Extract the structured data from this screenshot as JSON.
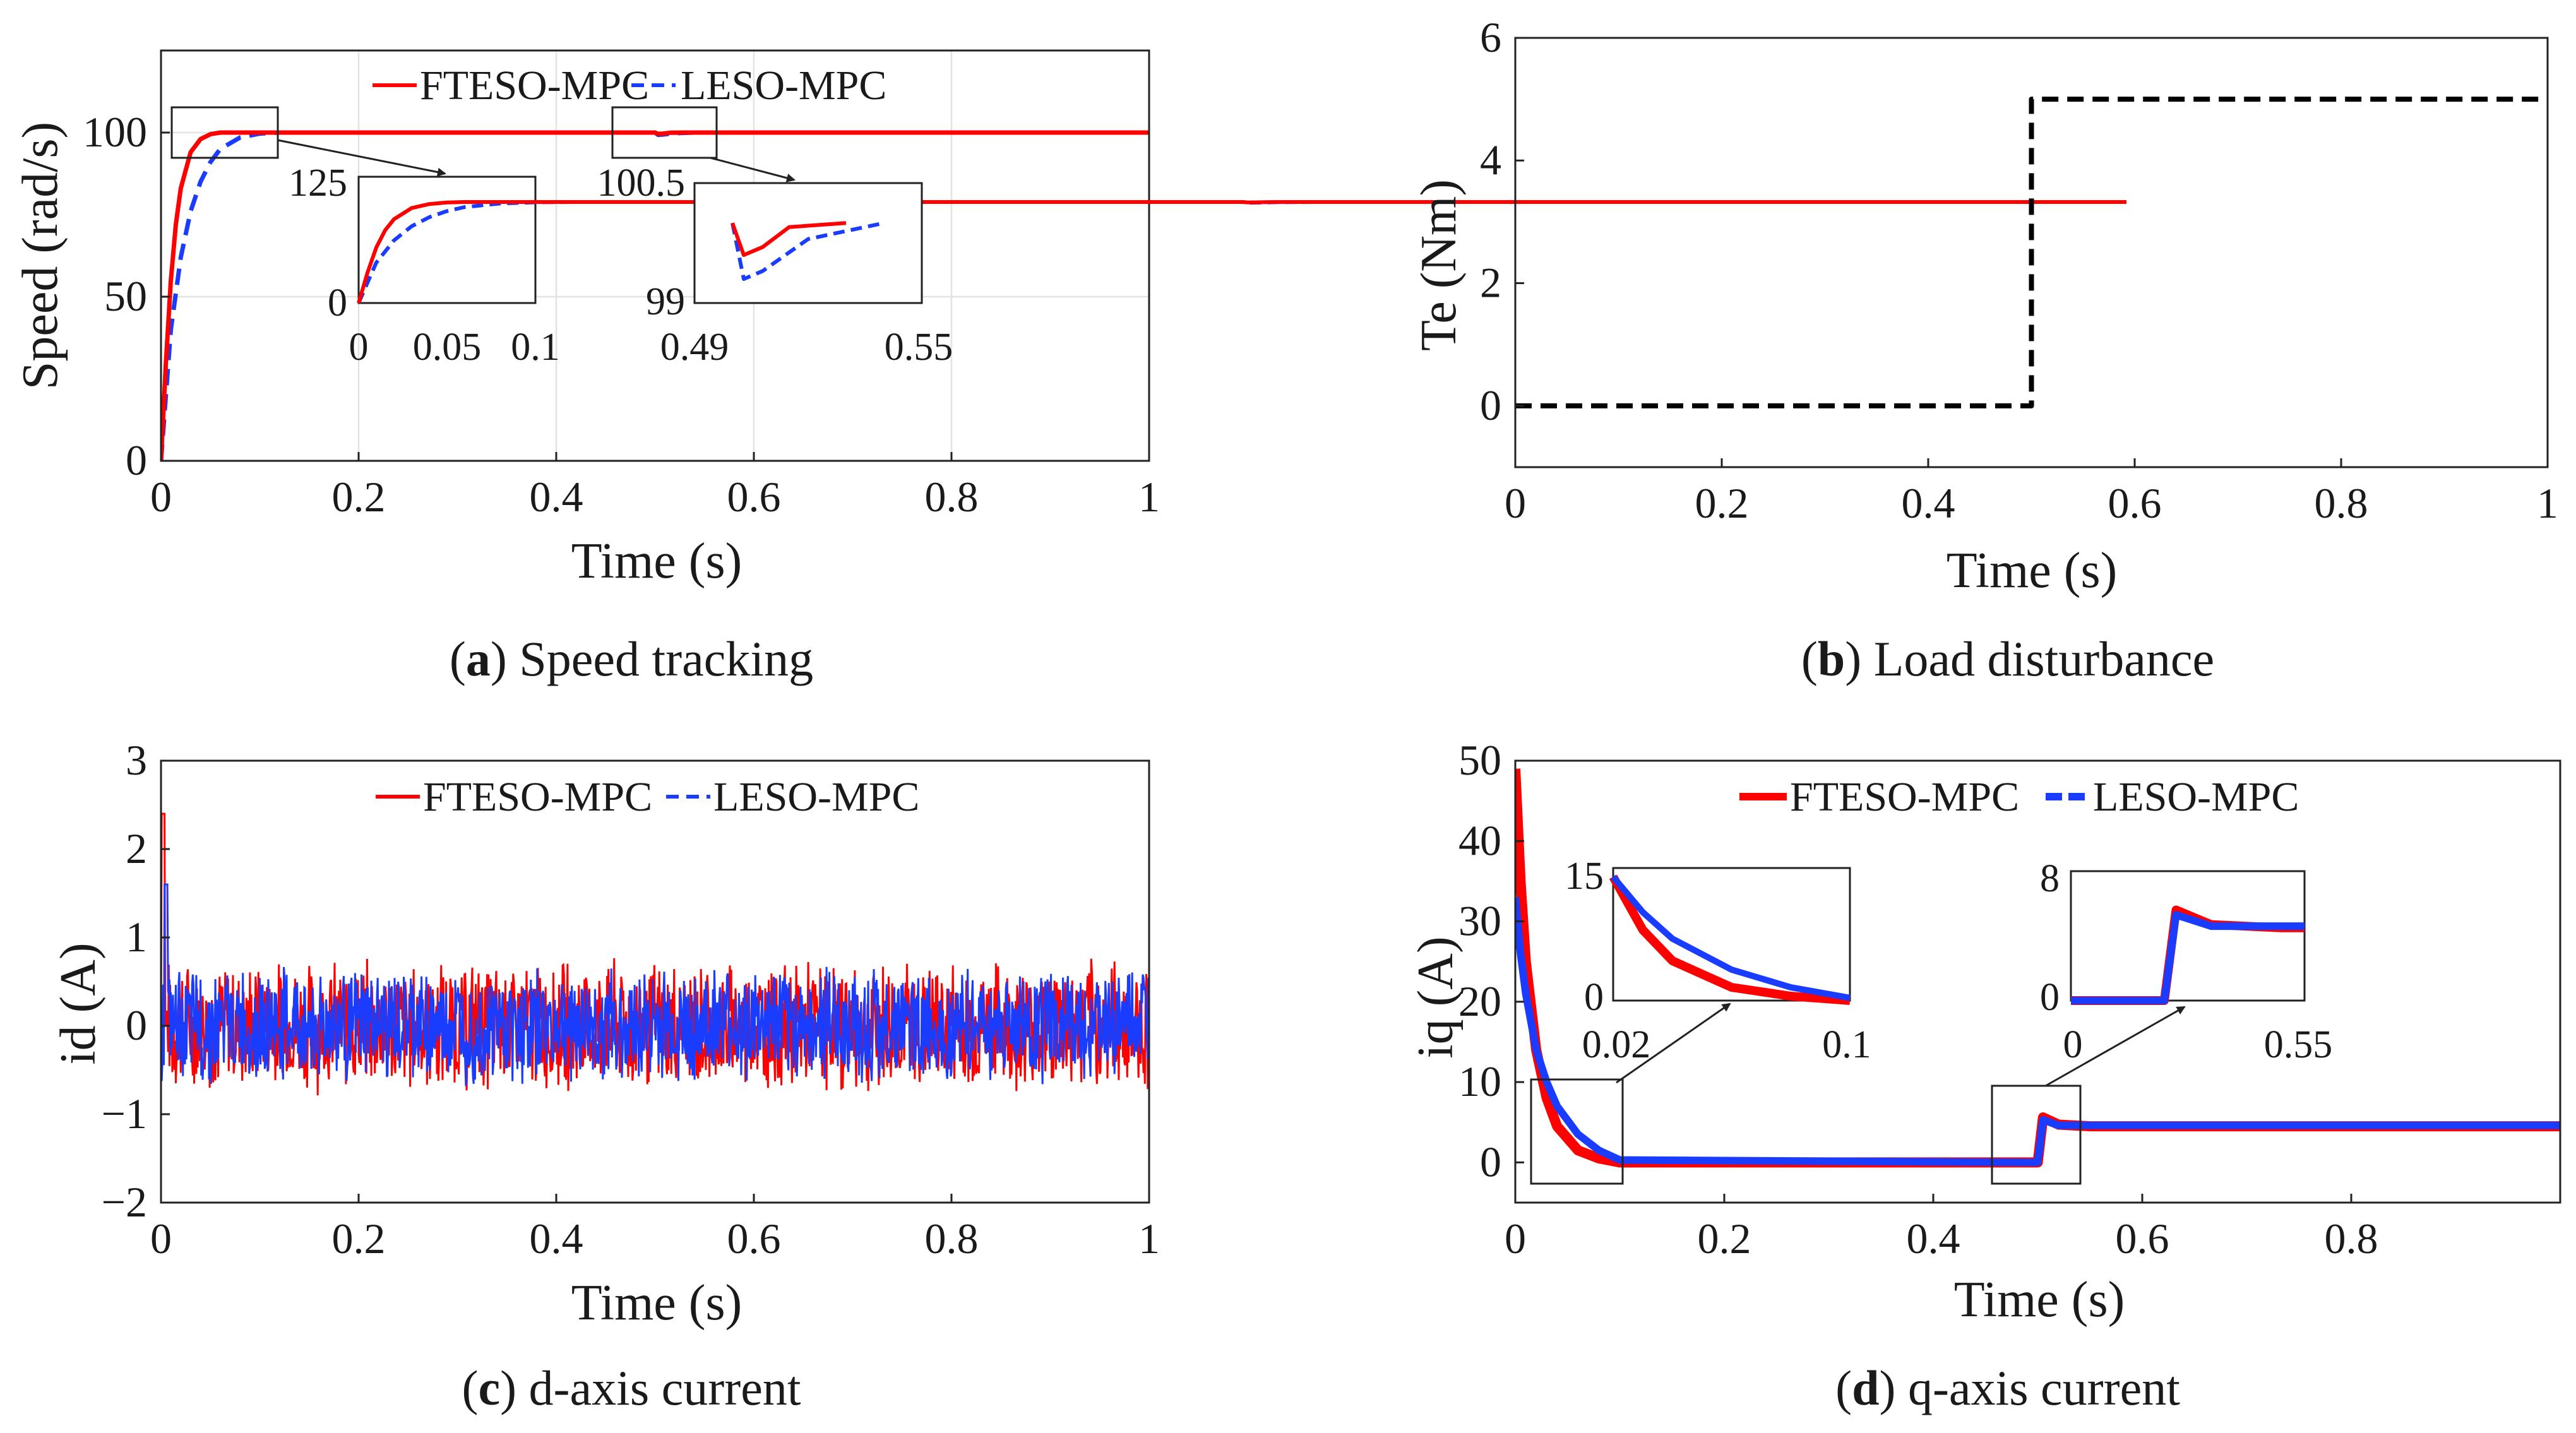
{
  "chart_data": [
    {
      "id": "a",
      "type": "line",
      "caption_label": "a",
      "caption_text": "Speed tracking",
      "xlabel": "Time (s)",
      "ylabel": "Speed (rad/s)",
      "xlim": [
        0,
        1
      ],
      "ylim": [
        0,
        125
      ],
      "xticks": [
        0,
        0.2,
        0.4,
        0.6,
        0.8,
        1
      ],
      "xtick_labels": [
        "0",
        "0.2",
        "0.4",
        "0.6",
        "0.8",
        "1"
      ],
      "yticks": [
        0,
        50,
        100
      ],
      "ytick_labels": [
        "0",
        "50",
        "100"
      ],
      "grid": true,
      "legend": [
        "FTESO-MPC",
        "LESO-MPC"
      ],
      "legend_position": "top-center",
      "series": [
        {
          "name": "FTESO-MPC",
          "color": "#ff0000",
          "style": "solid",
          "x": [
            0,
            0.005,
            0.01,
            0.015,
            0.02,
            0.03,
            0.04,
            0.05,
            0.06,
            0.08,
            0.1,
            0.5,
            0.503,
            0.508,
            0.515,
            0.53,
            1
          ],
          "y": [
            0,
            30,
            55,
            72,
            83,
            94,
            98,
            99.5,
            100,
            100,
            100,
            100,
            99.6,
            99.7,
            99.95,
            100,
            100
          ]
        },
        {
          "name": "LESO-MPC",
          "color": "#1a3cff",
          "style": "dashed",
          "x": [
            0,
            0.005,
            0.01,
            0.02,
            0.03,
            0.04,
            0.05,
            0.06,
            0.08,
            0.1,
            0.12,
            0.5,
            0.503,
            0.508,
            0.52,
            0.54,
            1
          ],
          "y": [
            0,
            20,
            40,
            62,
            76,
            85,
            91,
            95,
            98.5,
            99.7,
            100,
            100,
            99.3,
            99.4,
            99.8,
            100,
            100
          ]
        }
      ],
      "insets": [
        {
          "xlim": [
            0,
            0.1
          ],
          "ylim": [
            0,
            125
          ],
          "xtick_labels": [
            "0",
            "0.05",
            "0.1"
          ],
          "ytick_labels": [
            "0",
            "125"
          ]
        },
        {
          "xlim": [
            0.49,
            0.55
          ],
          "ylim": [
            99,
            100.5
          ],
          "xtick_labels": [
            "0.49",
            "0.55"
          ],
          "ytick_labels": [
            "99",
            "100.5"
          ]
        }
      ]
    },
    {
      "id": "b",
      "type": "line",
      "caption_label": "b",
      "caption_text": "Load disturbance",
      "xlabel": "Time (s)",
      "ylabel": "Te (Nm)",
      "xlim": [
        0,
        1
      ],
      "ylim": [
        -1,
        6
      ],
      "xticks": [
        0,
        0.2,
        0.4,
        0.6,
        0.8,
        1
      ],
      "xtick_labels": [
        "0",
        "0.2",
        "0.4",
        "0.6",
        "0.8",
        "1"
      ],
      "yticks": [
        0,
        2,
        4,
        6
      ],
      "ytick_labels": [
        "0",
        "2",
        "4",
        "6"
      ],
      "grid": false,
      "series": [
        {
          "name": "Te",
          "color": "#000000",
          "style": "dashed",
          "x": [
            0,
            0.5,
            0.5,
            1
          ],
          "y": [
            0,
            0,
            5,
            5
          ]
        }
      ]
    },
    {
      "id": "c",
      "type": "line",
      "caption_label": "c",
      "caption_text": "d-axis current",
      "xlabel": "Time (s)",
      "ylabel": "id (A)",
      "xlim": [
        0,
        1
      ],
      "ylim": [
        -2,
        3
      ],
      "xticks": [
        0,
        0.2,
        0.4,
        0.6,
        0.8,
        1
      ],
      "xtick_labels": [
        "0",
        "0.2",
        "0.4",
        "0.6",
        "0.8",
        "1"
      ],
      "yticks": [
        -2,
        -1,
        0,
        1,
        2,
        3
      ],
      "ytick_labels": [
        "−2",
        "−1",
        "0",
        "1",
        "2",
        "3"
      ],
      "grid": false,
      "legend": [
        "FTESO-MPC",
        "LESO-MPC"
      ],
      "legend_position": "top-center",
      "series": [
        {
          "name": "FTESO-MPC",
          "color": "#ff0000",
          "style": "noise",
          "mean": 0,
          "amplitude": 0.8,
          "peak": 2.4,
          "peak_at": 0.002
        },
        {
          "name": "LESO-MPC",
          "color": "#1a3cff",
          "style": "noise",
          "mean": 0,
          "amplitude": 0.7,
          "peak": 1.6,
          "peak_at": 0.005
        }
      ]
    },
    {
      "id": "d",
      "type": "line",
      "caption_label": "d",
      "caption_text": "q-axis current",
      "xlabel": "Time (s)",
      "ylabel": "iq (A)",
      "xlim": [
        0,
        1
      ],
      "ylim": [
        -5,
        50
      ],
      "xticks": [
        0,
        0.2,
        0.4,
        0.6,
        0.8
      ],
      "xtick_labels": [
        "0",
        "0.2",
        "0.4",
        "0.6",
        "0.8"
      ],
      "yticks": [
        0,
        10,
        20,
        30,
        40,
        50
      ],
      "ytick_labels": [
        "0",
        "10",
        "20",
        "30",
        "40",
        "50"
      ],
      "grid": false,
      "legend": [
        "FTESO-MPC",
        "LESO-MPC"
      ],
      "legend_position": "top-right",
      "series": [
        {
          "name": "FTESO-MPC",
          "color": "#ff0000",
          "style": "solid",
          "x": [
            0,
            0.005,
            0.01,
            0.02,
            0.03,
            0.04,
            0.06,
            0.08,
            0.1,
            0.5,
            0.505,
            0.52,
            0.55,
            1
          ],
          "y": [
            49,
            35,
            25,
            14,
            8,
            4.5,
            1.5,
            0.5,
            0,
            0,
            5.6,
            4.7,
            4.5,
            4.5
          ]
        },
        {
          "name": "LESO-MPC",
          "color": "#1a3cff",
          "style": "solid",
          "x": [
            0,
            0.005,
            0.01,
            0.02,
            0.03,
            0.04,
            0.06,
            0.08,
            0.1,
            0.5,
            0.505,
            0.52,
            0.55,
            1
          ],
          "y": [
            33,
            26,
            21,
            14,
            10,
            7,
            3.5,
            1.5,
            0.3,
            0,
            5.3,
            4.6,
            4.6,
            4.6
          ]
        }
      ],
      "insets": [
        {
          "xlim": [
            0.02,
            0.1
          ],
          "ylim": [
            0,
            15
          ],
          "xtick_labels": [
            "0.02",
            "0.1"
          ],
          "ytick_labels": [
            "0",
            "15"
          ]
        },
        {
          "xlim": [
            0,
            0.55
          ],
          "ylim": [
            0,
            8
          ],
          "xtick_labels": [
            "0",
            "0.55"
          ],
          "ytick_labels": [
            "0",
            "8"
          ]
        }
      ]
    }
  ]
}
